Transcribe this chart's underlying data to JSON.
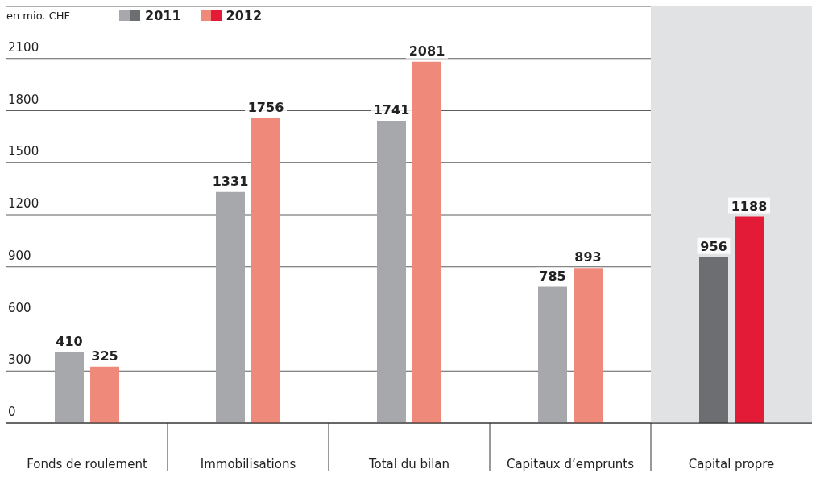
{
  "chart_data": {
    "type": "bar",
    "ylabel": "en mio. CHF",
    "categories": [
      "Fonds de roulement",
      "Immobilisations",
      "Total du bilan",
      "Capitaux d’emprunts",
      "Capital propre"
    ],
    "series": [
      {
        "name": "2011",
        "color": "#a7a8ab",
        "colors": [
          "#a7a8ab",
          "#a7a8ab",
          "#a7a8ab",
          "#a7a8ab",
          "#6d6e71"
        ],
        "values": [
          410,
          1331,
          1741,
          785,
          956
        ]
      },
      {
        "name": "2012",
        "color": "#ef8a7a",
        "colors": [
          "#ef8a7a",
          "#ef8a7a",
          "#ef8a7a",
          "#ef8a7a",
          "#e31b37"
        ],
        "values": [
          325,
          1756,
          2081,
          893,
          1188
        ]
      }
    ],
    "ylim": [
      0,
      2400
    ],
    "yticks": [
      0,
      300,
      600,
      900,
      1200,
      1500,
      1800,
      2100
    ],
    "grid": "y",
    "legend": "top left",
    "data_labels": true,
    "bands": [
      {
        "axis": "x",
        "from": "Capital propre",
        "to": "Capital propre",
        "color": "#e1e2e4"
      }
    ]
  }
}
